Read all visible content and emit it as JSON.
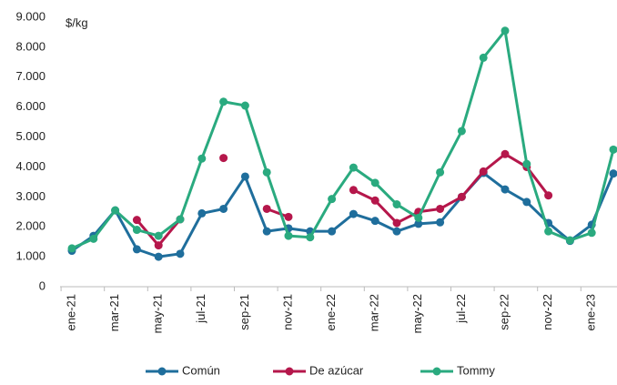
{
  "chart_data": {
    "type": "line",
    "y_unit_label": "$/kg",
    "categories": [
      "ene-21",
      null,
      "mar-21",
      null,
      "may-21",
      null,
      "jul-21",
      null,
      "sep-21",
      null,
      "nov-21",
      null,
      "ene-22",
      null,
      "mar-22",
      null,
      "may-22",
      null,
      "jul-22",
      null,
      "sep-22",
      null,
      "nov-22",
      null,
      "ene-23",
      null
    ],
    "series": [
      {
        "name": "Común",
        "color": "#1f6e9c",
        "values": [
          1200,
          1700,
          2550,
          1250,
          1000,
          1100,
          2450,
          2600,
          3680,
          1850,
          1950,
          1850,
          1850,
          2430,
          2200,
          1850,
          2100,
          2150,
          3000,
          3800,
          3250,
          2830,
          2130,
          1530,
          2070,
          3780
        ]
      },
      {
        "name": "De azúcar",
        "color": "#b5174b",
        "values": [
          null,
          null,
          null,
          2230,
          1380,
          2250,
          null,
          4300,
          null,
          2600,
          2330,
          null,
          null,
          3230,
          2880,
          2130,
          2500,
          2600,
          3000,
          3850,
          4430,
          4000,
          3050,
          null,
          null,
          null
        ]
      },
      {
        "name": "Tommy",
        "color": "#2aaa7f",
        "values": [
          1280,
          1600,
          2550,
          1900,
          1700,
          2250,
          4280,
          6180,
          6050,
          3820,
          1700,
          1650,
          2930,
          3980,
          3470,
          2750,
          2300,
          3820,
          5200,
          7650,
          8550,
          4100,
          1850,
          1550,
          1800,
          4580
        ]
      }
    ],
    "ylim": [
      0,
      9000
    ],
    "yticks": [
      0,
      {
        "value": 1000,
        "label": "1.000"
      },
      {
        "value": 2000,
        "label": "2.000"
      },
      {
        "value": 3000,
        "label": "3.000"
      },
      {
        "value": 4000,
        "label": "4.000"
      },
      {
        "value": 5000,
        "label": "5.000"
      },
      {
        "value": 6000,
        "label": "6.000"
      },
      {
        "value": 7000,
        "label": "7.000"
      },
      {
        "value": 8000,
        "label": "8.000"
      },
      {
        "value": 9000,
        "label": "9.000"
      }
    ],
    "legend": "bottom"
  }
}
